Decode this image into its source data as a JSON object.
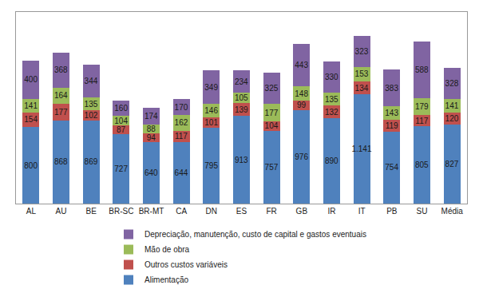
{
  "chart_data": {
    "type": "bar",
    "stacked": true,
    "data_labels": true,
    "tick_labels": "x",
    "grid": false,
    "legend": "bottom",
    "ylim": [
      0,
      2000
    ],
    "categories": [
      "AL",
      "AU",
      "BE",
      "BR-SC",
      "BR-MT",
      "CA",
      "DN",
      "ES",
      "FR",
      "GB",
      "IR",
      "IT",
      "PB",
      "SU",
      "Média"
    ],
    "series": [
      {
        "name": "Alimentação",
        "color": "#4f81bd",
        "values": [
          800,
          868,
          869,
          727,
          640,
          644,
          795,
          913,
          757,
          976,
          890,
          1141,
          754,
          805,
          827
        ],
        "value_labels": [
          "800",
          "868",
          "869",
          "727",
          "640",
          "644",
          "795",
          "913",
          "757",
          "976",
          "890",
          "1.141",
          "754",
          "805",
          "827"
        ]
      },
      {
        "name": "Outros custos variáveis",
        "color": "#c0504d",
        "values": [
          154,
          177,
          102,
          87,
          94,
          117,
          101,
          139,
          104,
          99,
          132,
          134,
          119,
          117,
          120
        ]
      },
      {
        "name": "Mão de obra",
        "color": "#9bbb59",
        "values": [
          141,
          164,
          135,
          104,
          88,
          162,
          146,
          105,
          177,
          148,
          135,
          153,
          143,
          179,
          141
        ]
      },
      {
        "name": "Depreciação, manutenção, custo de capital e gastos eventuais",
        "color": "#8064a2",
        "values": [
          400,
          368,
          344,
          160,
          174,
          170,
          349,
          234,
          325,
          443,
          330,
          323,
          383,
          588,
          328
        ]
      }
    ]
  }
}
